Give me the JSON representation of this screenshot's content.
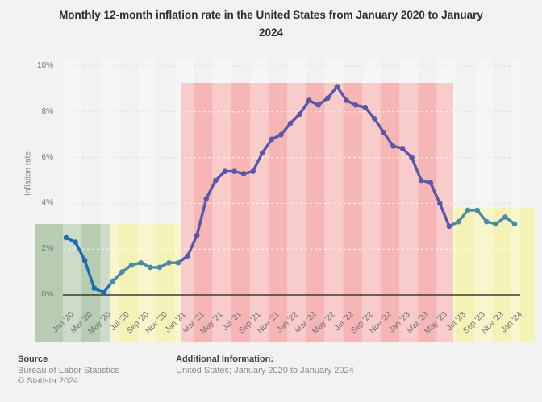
{
  "title": {
    "full": "Monthly 12-month inflation rate in the United States from January 2020 to January 2024",
    "lines": [
      "Monthly 12-month inflation rate in the United States from January 2020 to January",
      "2024"
    ]
  },
  "y_axis": {
    "label": "Inflation rate",
    "tick_labels": [
      "0%",
      "2%",
      "4%",
      "6%",
      "8%",
      "10%"
    ],
    "tick_values": [
      0,
      2,
      4,
      6,
      8,
      10
    ]
  },
  "footer": {
    "source_label": "Source",
    "source_name": "Bureau of Labor Statistics",
    "copyright": "© Statista 2024",
    "additional_label": "Additional Information:",
    "additional_text": "United States; January 2020 to January 2024"
  },
  "colors": {
    "page_background": "#f2f2f2",
    "axis_line": "#3a3a3a",
    "gridline_gray": "#dcdcdc",
    "gridline_white": "rgba(255,255,255,0.85)",
    "tick_text": "#6e6e6e"
  },
  "chart_data": {
    "type": "line",
    "title": "Monthly 12-month inflation rate in the United States from January 2020 to January 2024",
    "xlabel": "",
    "ylabel": "Inflation rate",
    "ylim": [
      0,
      10
    ],
    "grid": "horizontal dashed every 2%",
    "x_tick_every": 2,
    "categories": [
      "Jan '20",
      "Feb '20",
      "Mar '20",
      "Apr '20",
      "May '20",
      "Jun '20",
      "Jul '20",
      "Aug '20",
      "Sep '20",
      "Oct '20",
      "Nov '20",
      "Dec '20",
      "Jan '21",
      "Feb '21",
      "Mar '21",
      "Apr '21",
      "May '21",
      "Jun '21",
      "Jul '21",
      "Aug '21",
      "Sep '21",
      "Oct '21",
      "Nov '21",
      "Dec '21",
      "Jan '22",
      "Feb '22",
      "Mar '22",
      "Apr '22",
      "May '22",
      "Jun '22",
      "Jul '22",
      "Aug '22",
      "Sep '22",
      "Oct '22",
      "Nov '22",
      "Dec '22",
      "Jan '23",
      "Feb '23",
      "Mar '23",
      "Apr '23",
      "May '23",
      "Jun '23",
      "Jul '23",
      "Aug '23",
      "Sep '23",
      "Oct '23",
      "Nov '23",
      "Dec '23",
      "Jan '24"
    ],
    "values": [
      2.5,
      2.3,
      1.5,
      0.3,
      0.1,
      0.6,
      1.0,
      1.3,
      1.4,
      1.2,
      1.2,
      1.4,
      1.4,
      1.7,
      2.6,
      4.2,
      5.0,
      5.4,
      5.4,
      5.3,
      5.4,
      6.2,
      6.8,
      7.0,
      7.5,
      7.9,
      8.5,
      8.3,
      8.6,
      9.1,
      8.5,
      8.3,
      8.2,
      7.7,
      7.1,
      6.5,
      6.4,
      6.0,
      5.0,
      4.9,
      4.0,
      3.0,
      3.2,
      3.7,
      3.7,
      3.2,
      3.1,
      3.4,
      3.1
    ],
    "background_bands": [
      {
        "name": "green-band",
        "from": "Jan '20",
        "to": "May '20",
        "color": "#b7cdb2",
        "top_value": 3.1
      },
      {
        "name": "yellow-band",
        "from": "Jun '20",
        "to": "Jan '21",
        "color": "#f5f2b8",
        "top_value": 3.1
      },
      {
        "name": "red-band",
        "from": "Feb '21",
        "to": "Jun '23",
        "color": "#f6b6b6",
        "top_value": 9.3
      },
      {
        "name": "yellow-band",
        "from": "Jul '23",
        "to": "Jan '24",
        "color": "#f5f2b8",
        "top_value": 3.8
      }
    ],
    "line_segment_colors": [
      "#1f6bb0",
      "#4a8ba4",
      "#5b57a8",
      "#4a8ba4"
    ]
  }
}
